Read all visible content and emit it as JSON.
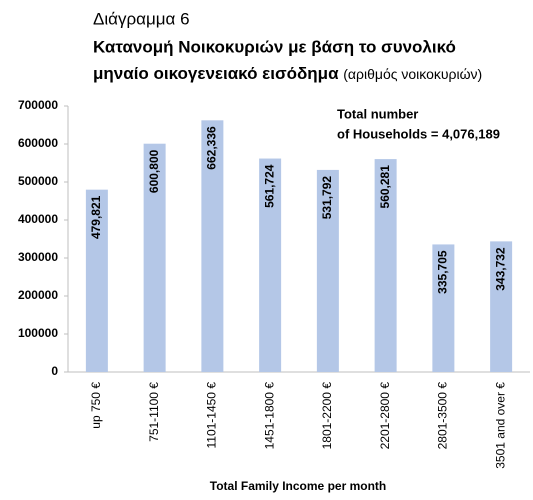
{
  "chart_data": {
    "type": "bar",
    "supertitle": "Διάγραμμα 6",
    "title": [
      "Κατανομή Νοικοκυριών με βάση το συνολικό",
      "μηναίο οικογενειακό εισόδημα"
    ],
    "subtitle": "(αριθμός νοικοκυριών)",
    "annotation": [
      "Total number",
      "of Households = 4,076,189"
    ],
    "x_label": "Total Family Income per month",
    "categories": [
      "up 750 €",
      "751-1100 €",
      "1101-1450 €",
      "1451-1800 €",
      "1801-2200 €",
      "2201-2800 €",
      "2801-3500 €",
      "3501 and over €"
    ],
    "values": [
      479821,
      600800,
      662336,
      561724,
      531792,
      560281,
      335705,
      343732
    ],
    "value_labels": [
      "479,821",
      "600,800",
      "662,336",
      "561,724",
      "531,792",
      "560,281",
      "335,705",
      "343,732"
    ],
    "color": "#b4c7e7",
    "ylim": [
      0,
      700000
    ],
    "yticks": [
      0,
      100000,
      200000,
      300000,
      400000,
      500000,
      600000,
      700000
    ],
    "grid": false
  }
}
